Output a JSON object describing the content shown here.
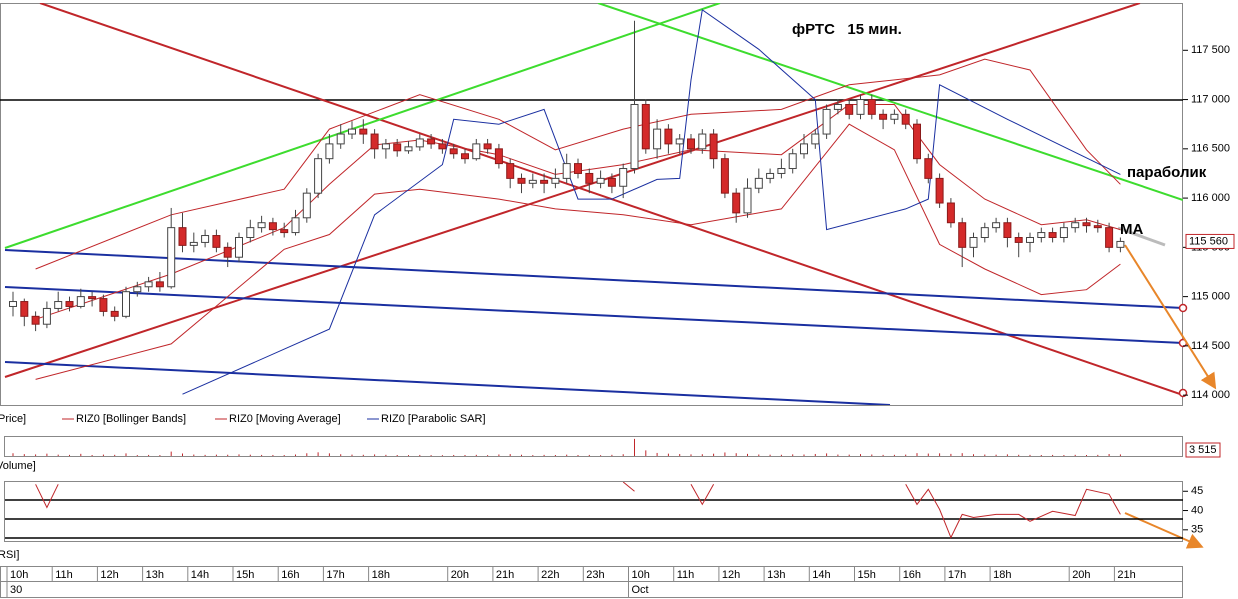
{
  "chart_data": {
    "type": "candlestick",
    "title": "фРТС   15 мин.",
    "annotations": [
      "параболик",
      "MA"
    ],
    "categories": [
      "10h",
      null,
      null,
      null,
      "11h",
      null,
      null,
      null,
      "12h",
      null,
      null,
      null,
      "13h",
      null,
      null,
      null,
      "14h",
      null,
      null,
      null,
      "15h",
      null,
      null,
      null,
      "16h",
      null,
      null,
      null,
      "17h",
      null,
      null,
      null,
      "18h",
      null,
      null,
      null,
      null,
      null,
      null,
      "20h",
      null,
      null,
      null,
      "21h",
      null,
      null,
      null,
      "22h",
      null,
      null,
      null,
      "23h",
      null,
      null,
      null,
      "10h",
      null,
      null,
      null,
      "11h",
      null,
      null,
      null,
      "12h",
      null,
      null,
      null,
      "13h",
      null,
      null,
      null,
      "14h",
      null,
      null,
      null,
      "15h",
      null,
      null,
      null,
      "16h",
      null,
      null,
      null,
      "17h",
      null,
      null,
      null,
      "18h",
      null,
      null,
      null,
      null,
      null,
      null,
      "20h",
      null,
      null,
      null,
      "21h"
    ],
    "dates": [
      "30",
      null,
      null,
      null,
      null,
      null,
      null,
      null,
      null,
      null,
      null,
      null,
      null,
      null,
      null,
      null,
      null,
      null,
      null,
      null,
      null,
      null,
      null,
      null,
      null,
      null,
      null,
      null,
      null,
      null,
      null,
      null,
      null,
      null,
      null,
      null,
      null,
      null,
      null,
      null,
      null,
      null,
      null,
      null,
      null,
      null,
      null,
      null,
      null,
      null,
      null,
      null,
      null,
      null,
      null,
      "Oct",
      null,
      null,
      null,
      null,
      null,
      null,
      null,
      null,
      null,
      null,
      null,
      null,
      null,
      null,
      null,
      null,
      null,
      null,
      null,
      null,
      null,
      null,
      null,
      null,
      null,
      null,
      null,
      null,
      null,
      null,
      null,
      null,
      null,
      null,
      null,
      null,
      null,
      null,
      null,
      null,
      null,
      null,
      null
    ],
    "open": [
      114900,
      114950,
      114800,
      114720,
      114880,
      114950,
      114900,
      115000,
      114980,
      114850,
      114800,
      115050,
      115100,
      115150,
      115100,
      115700,
      115520,
      115550,
      115620,
      115500,
      115400,
      115600,
      115700,
      115750,
      115680,
      115650,
      115800,
      116050,
      116400,
      116550,
      116650,
      116700,
      116650,
      116500,
      116550,
      116480,
      116520,
      116600,
      116550,
      116500,
      116450,
      116400,
      116550,
      116500,
      116350,
      116200,
      116150,
      116180,
      116150,
      116200,
      116350,
      116250,
      116150,
      116200,
      116120,
      116300,
      116950,
      116500,
      116700,
      116550,
      116600,
      116500,
      116650,
      116400,
      116050,
      115850,
      116100,
      116200,
      116250,
      116300,
      116450,
      116550,
      116650,
      116900,
      116950,
      116850,
      117000,
      116850,
      116800,
      116850,
      116750,
      116400,
      116200,
      115950,
      115750,
      115500,
      115600,
      115700,
      115750,
      115600,
      115550,
      115600,
      115650,
      115600,
      115700,
      115750,
      115720,
      115700,
      115500
    ],
    "high": [
      115050,
      114980,
      114850,
      114950,
      115050,
      115000,
      115080,
      115050,
      115020,
      114900,
      115100,
      115150,
      115200,
      115250,
      115900,
      115850,
      115650,
      115680,
      115680,
      115550,
      115650,
      115780,
      115820,
      115800,
      115750,
      115880,
      116100,
      116450,
      116650,
      116750,
      116780,
      116800,
      116700,
      116600,
      116600,
      116580,
      116650,
      116650,
      116600,
      116550,
      116500,
      116600,
      116600,
      116550,
      116400,
      116250,
      116250,
      116250,
      116300,
      116450,
      116400,
      116300,
      116280,
      116250,
      116350,
      117800,
      117000,
      116800,
      116750,
      116650,
      116650,
      116700,
      116700,
      116450,
      116100,
      116200,
      116300,
      116300,
      116400,
      116500,
      116650,
      116700,
      116950,
      117000,
      117000,
      117050,
      117050,
      116900,
      116900,
      116900,
      116800,
      116450,
      116250,
      116000,
      115800,
      115650,
      115750,
      115800,
      115800,
      115650,
      115650,
      115700,
      115700,
      115750,
      115800,
      115800,
      115780,
      115750,
      115600
    ],
    "low": [
      114800,
      114700,
      114650,
      114680,
      114850,
      114850,
      114880,
      114900,
      114800,
      114750,
      114780,
      115000,
      115050,
      115050,
      115080,
      115450,
      115450,
      115500,
      115450,
      115300,
      115350,
      115550,
      115650,
      115620,
      115600,
      115620,
      115750,
      116000,
      116350,
      116500,
      116600,
      116550,
      116400,
      116400,
      116420,
      116450,
      116480,
      116500,
      116450,
      116400,
      116350,
      116380,
      116450,
      116300,
      116100,
      116050,
      116100,
      116050,
      116100,
      116150,
      116200,
      116050,
      116100,
      116050,
      116000,
      116250,
      116450,
      116400,
      116450,
      116450,
      116450,
      116450,
      116300,
      116000,
      115750,
      115800,
      116050,
      116150,
      116200,
      116250,
      116400,
      116500,
      116600,
      116850,
      116800,
      116800,
      116800,
      116700,
      116750,
      116700,
      116350,
      116150,
      115900,
      115700,
      115300,
      115400,
      115550,
      115650,
      115500,
      115400,
      115450,
      115550,
      115550,
      115550,
      115650,
      115650,
      115650,
      115450,
      115450
    ],
    "close": [
      114950,
      114800,
      114720,
      114880,
      114950,
      114900,
      115000,
      114980,
      114850,
      114800,
      115050,
      115100,
      115150,
      115100,
      115700,
      115520,
      115550,
      115620,
      115500,
      115400,
      115600,
      115700,
      115750,
      115680,
      115650,
      115800,
      116050,
      116400,
      116550,
      116650,
      116700,
      116650,
      116500,
      116550,
      116480,
      116520,
      116600,
      116550,
      116500,
      116450,
      116400,
      116550,
      116500,
      116350,
      116200,
      116150,
      116180,
      116150,
      116200,
      116350,
      116250,
      116150,
      116200,
      116120,
      116300,
      116950,
      116500,
      116700,
      116550,
      116600,
      116500,
      116650,
      116400,
      116050,
      115850,
      116100,
      116200,
      116250,
      116300,
      116450,
      116550,
      116650,
      116900,
      116950,
      116850,
      117000,
      116850,
      116800,
      116850,
      116750,
      116400,
      116200,
      115950,
      115750,
      115500,
      115600,
      115700,
      115750,
      115600,
      115550,
      115600,
      115650,
      115600,
      115700,
      115750,
      115720,
      115700,
      115500,
      115560
    ],
    "ylim": [
      113900,
      117980
    ],
    "yticks": [
      {
        "value": 114000,
        "label": "114 000"
      },
      {
        "value": 114500,
        "label": "114 500"
      },
      {
        "value": 115000,
        "label": "115 000"
      },
      {
        "value": 115500,
        "label": "115 500"
      },
      {
        "value": 116000,
        "label": "116 000"
      },
      {
        "value": 116500,
        "label": "116 500"
      },
      {
        "value": 117000,
        "label": "117 000"
      },
      {
        "value": 117500,
        "label": "117 500"
      }
    ],
    "last_price": {
      "value": 115560,
      "label": "115 560"
    },
    "price_label": "Price]",
    "bollinger": {
      "name": "RIZ0 [Bollinger Bands]",
      "color": "#c0262a",
      "upper": {
        "x": [
          2,
          14,
          24,
          28,
          36,
          43,
          48,
          54,
          60,
          68,
          74,
          82,
          86,
          90,
          95,
          98
        ],
        "values": [
          115280,
          115830,
          116090,
          116700,
          117050,
          116800,
          116490,
          116700,
          116850,
          116900,
          117150,
          117250,
          117410,
          117300,
          116490,
          116140
        ]
      },
      "lower": {
        "x": [
          2,
          14,
          24,
          28,
          32,
          36,
          43,
          48,
          54,
          60,
          68,
          74,
          78,
          82,
          86,
          91,
          95,
          98
        ],
        "values": [
          114160,
          114520,
          115480,
          115630,
          116040,
          116090,
          115990,
          115890,
          115830,
          115730,
          115890,
          116750,
          116490,
          115530,
          115280,
          115020,
          115070,
          115330
        ]
      }
    },
    "moving_average": {
      "name": "RIZ0 [Moving Average]",
      "color": "#c0262a",
      "x": [
        2,
        14,
        24,
        28,
        32,
        36,
        43,
        48,
        54,
        60,
        68,
        74,
        78,
        82,
        86,
        91,
        95,
        98
      ],
      "values": [
        114770,
        115230,
        115700,
        116140,
        116540,
        116590,
        116440,
        116240,
        116340,
        116490,
        116440,
        116950,
        116950,
        116340,
        115990,
        115730,
        115780,
        115680
      ]
    },
    "parabolic_sar": {
      "name": "RIZ0 [Parabolic SAR]",
      "color": "#1a2fa0",
      "x": [
        15,
        28,
        32,
        38,
        39,
        43,
        47,
        50,
        53,
        57,
        59,
        60,
        61,
        66,
        71,
        72,
        79,
        81,
        82,
        88,
        98
      ],
      "values": [
        114010,
        114670,
        115830,
        116340,
        116800,
        116750,
        116900,
        115990,
        115990,
        116190,
        116200,
        117200,
        117910,
        117510,
        117000,
        115680,
        115890,
        115990,
        117150,
        116800,
        116240
      ]
    },
    "volume": {
      "label": "Volume]",
      "color": "#c0262a",
      "ylim": [
        0,
        40000
      ],
      "last": {
        "value": 3515,
        "label": "3 515"
      },
      "values": [
        6200,
        4100,
        3500,
        5200,
        3000,
        2500,
        4800,
        2200,
        3100,
        2600,
        5800,
        2000,
        2400,
        2100,
        9800,
        5600,
        3200,
        2500,
        3000,
        2800,
        3600,
        2900,
        2400,
        2300,
        2100,
        3300,
        6100,
        8200,
        5900,
        3900,
        3100,
        2700,
        3500,
        2600,
        2200,
        1900,
        2400,
        2000,
        1800,
        2300,
        2100,
        2600,
        1900,
        3400,
        4200,
        2800,
        2000,
        2500,
        2200,
        3000,
        2300,
        2400,
        1800,
        2600,
        3900,
        38000,
        12500,
        6800,
        5200,
        4300,
        3600,
        3900,
        5100,
        7900,
        6200,
        4800,
        3300,
        2900,
        2700,
        3600,
        3400,
        4500,
        5800,
        3200,
        3000,
        4100,
        3300,
        2500,
        2600,
        3100,
        6500,
        5400,
        5900,
        4700,
        6300,
        3800,
        3200,
        2900,
        3600,
        2700,
        2500,
        2200,
        2400,
        2100,
        2600,
        2300,
        2500,
        4400,
        3515
      ]
    },
    "rsi": {
      "label": "RSI]",
      "color": "#c0262a",
      "ylim": [
        32.1,
        47.4
      ],
      "yticks": [
        35,
        40,
        45
      ],
      "x": [
        2,
        3,
        4,
        5,
        54,
        55,
        56,
        60,
        61,
        62,
        63,
        79,
        80,
        81,
        82,
        83,
        84,
        85,
        87,
        89,
        90,
        92,
        94,
        95,
        97,
        98
      ],
      "values": [
        46.8,
        40.8,
        46.8,
        null,
        47.4,
        45,
        null,
        46.8,
        41.6,
        46.8,
        null,
        46.8,
        41.6,
        45.5,
        40.3,
        33,
        39,
        38.2,
        39,
        39,
        37.2,
        39.8,
        38.7,
        45.5,
        44.2,
        39
      ]
    }
  }
}
